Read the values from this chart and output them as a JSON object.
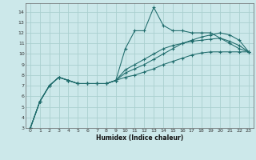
{
  "xlabel": "Humidex (Indice chaleur)",
  "bg_color": "#cce8ea",
  "grid_color": "#aacfcf",
  "line_color": "#1e6b6b",
  "xlim": [
    -0.5,
    23.5
  ],
  "ylim": [
    3,
    14.8
  ],
  "xticks": [
    0,
    1,
    2,
    3,
    4,
    5,
    6,
    7,
    8,
    9,
    10,
    11,
    12,
    13,
    14,
    15,
    16,
    17,
    18,
    19,
    20,
    21,
    22,
    23
  ],
  "yticks": [
    3,
    4,
    5,
    6,
    7,
    8,
    9,
    10,
    11,
    12,
    13,
    14
  ],
  "series": [
    {
      "x": [
        0,
        1,
        2,
        3,
        4,
        5,
        6,
        7,
        8,
        9,
        10,
        11,
        12,
        13,
        14,
        15,
        16,
        17,
        18,
        19,
        20,
        21,
        22,
        23
      ],
      "y": [
        3.0,
        5.5,
        7.0,
        7.8,
        7.5,
        7.2,
        7.2,
        7.2,
        7.2,
        7.5,
        10.5,
        12.2,
        12.2,
        14.4,
        12.7,
        12.2,
        12.2,
        12.0,
        12.0,
        12.0,
        11.5,
        11.0,
        10.5,
        10.2
      ]
    },
    {
      "x": [
        0,
        1,
        2,
        3,
        4,
        5,
        6,
        7,
        8,
        9,
        10,
        11,
        12,
        13,
        14,
        15,
        16,
        17,
        18,
        19,
        20,
        21,
        22,
        23
      ],
      "y": [
        3.0,
        5.5,
        7.0,
        7.8,
        7.5,
        7.2,
        7.2,
        7.2,
        7.2,
        7.5,
        8.5,
        9.0,
        9.5,
        10.0,
        10.5,
        10.8,
        11.0,
        11.2,
        11.3,
        11.4,
        11.5,
        11.2,
        10.8,
        10.2
      ]
    },
    {
      "x": [
        0,
        1,
        2,
        3,
        4,
        5,
        6,
        7,
        8,
        9,
        10,
        11,
        12,
        13,
        14,
        15,
        16,
        17,
        18,
        19,
        20,
        21,
        22,
        23
      ],
      "y": [
        3.0,
        5.5,
        7.0,
        7.8,
        7.5,
        7.2,
        7.2,
        7.2,
        7.2,
        7.5,
        8.2,
        8.6,
        9.0,
        9.5,
        10.0,
        10.5,
        11.0,
        11.3,
        11.6,
        11.8,
        12.0,
        11.8,
        11.3,
        10.2
      ]
    },
    {
      "x": [
        0,
        1,
        2,
        3,
        4,
        5,
        6,
        7,
        8,
        9,
        10,
        11,
        12,
        13,
        14,
        15,
        16,
        17,
        18,
        19,
        20,
        21,
        22,
        23
      ],
      "y": [
        3.0,
        5.5,
        7.0,
        7.8,
        7.5,
        7.2,
        7.2,
        7.2,
        7.2,
        7.5,
        7.8,
        8.0,
        8.3,
        8.6,
        9.0,
        9.3,
        9.6,
        9.9,
        10.1,
        10.2,
        10.2,
        10.2,
        10.2,
        10.2
      ]
    }
  ]
}
